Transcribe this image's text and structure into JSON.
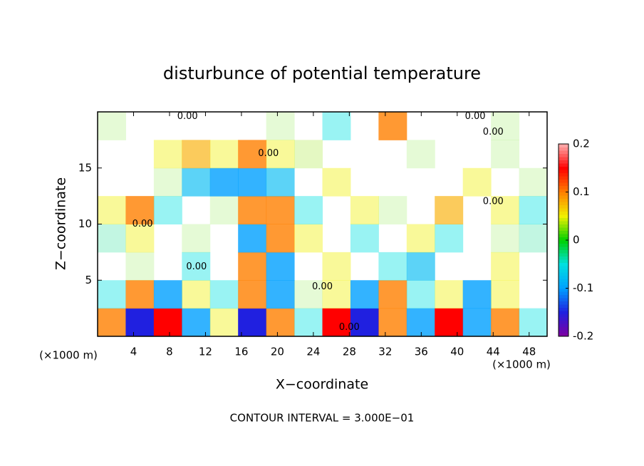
{
  "chart_data": {
    "type": "heatmap",
    "title": "disturbunce of potential temperature",
    "x_label": "X−coordinate",
    "y_label": "Z−coordinate",
    "x_unit": "(×1000 m)",
    "y_unit": "(×1000 m)",
    "footnote": "CONTOUR INTERVAL = 3.000E−01",
    "xlim": [
      0,
      50
    ],
    "ylim": [
      0,
      20
    ],
    "xticks": [
      4,
      8,
      12,
      16,
      20,
      24,
      28,
      32,
      36,
      40,
      44,
      48
    ],
    "yticks": [
      5,
      10,
      15
    ],
    "z": [
      [
        0.1,
        -0.15,
        0.15,
        -0.1,
        0.05,
        -0.15,
        0.1,
        -0.05,
        0.15,
        -0.15,
        0.1,
        -0.1,
        0.15,
        -0.1,
        0.1,
        -0.05
      ],
      [
        -0.05,
        0.1,
        -0.1,
        0.05,
        -0.05,
        0.1,
        -0.1,
        0.02,
        0.05,
        -0.1,
        0.1,
        -0.05,
        0.05,
        -0.1,
        0.05,
        0
      ],
      [
        0,
        0.02,
        0,
        -0.05,
        0,
        0.1,
        -0.1,
        0,
        0.05,
        0,
        -0.05,
        -0.08,
        0,
        0,
        0.05,
        0
      ],
      [
        -0.03,
        0.05,
        0,
        0.02,
        0,
        -0.1,
        0.1,
        0.05,
        0,
        -0.05,
        0,
        0.05,
        -0.05,
        0,
        0.02,
        -0.03
      ],
      [
        0.05,
        0.1,
        -0.05,
        0,
        0.02,
        0.1,
        0.1,
        -0.05,
        0,
        0.05,
        0.02,
        0,
        0.08,
        0,
        0.05,
        -0.05
      ],
      [
        0,
        0,
        0.02,
        -0.08,
        -0.1,
        -0.1,
        -0.08,
        0,
        0.05,
        0,
        0,
        0,
        0,
        0.05,
        0,
        0.02
      ],
      [
        0,
        0,
        0.05,
        0.08,
        0.05,
        0.1,
        0.05,
        0.03,
        0,
        0,
        0,
        0.02,
        0,
        0,
        0.02,
        0
      ],
      [
        0.02,
        0,
        0,
        0,
        0,
        0,
        0.02,
        0,
        -0.05,
        0,
        0.1,
        0,
        0,
        0,
        0.02,
        0
      ]
    ],
    "colorscale": [
      [
        -0.2,
        "#8000a0"
      ],
      [
        -0.15,
        "#2020e0"
      ],
      [
        -0.1,
        "#00a0ff"
      ],
      [
        -0.05,
        "#00e0e0"
      ],
      [
        0,
        "#00d000"
      ],
      [
        0.05,
        "#f0f000"
      ],
      [
        0.1,
        "#ff8000"
      ],
      [
        0.15,
        "#ff0000"
      ],
      [
        0.2,
        "#ffb0b0"
      ]
    ],
    "clim": [
      -0.2,
      0.2
    ],
    "cticks": [
      -0.2,
      -0.1,
      0,
      0.1,
      0.2
    ],
    "contour_labels": [
      {
        "x": 10,
        "y": 19.6,
        "label": "0.00"
      },
      {
        "x": 42,
        "y": 19.6,
        "label": "0.00"
      },
      {
        "x": 44,
        "y": 18.2,
        "label": "0.00"
      },
      {
        "x": 19,
        "y": 16.3,
        "label": "0.00"
      },
      {
        "x": 44,
        "y": 12,
        "label": "0.00"
      },
      {
        "x": 5,
        "y": 10,
        "label": "0.00"
      },
      {
        "x": 11,
        "y": 6.2,
        "label": "0.00"
      },
      {
        "x": 25,
        "y": 4.4,
        "label": "0.00"
      },
      {
        "x": 28,
        "y": 0.8,
        "label": "0.00"
      }
    ]
  }
}
